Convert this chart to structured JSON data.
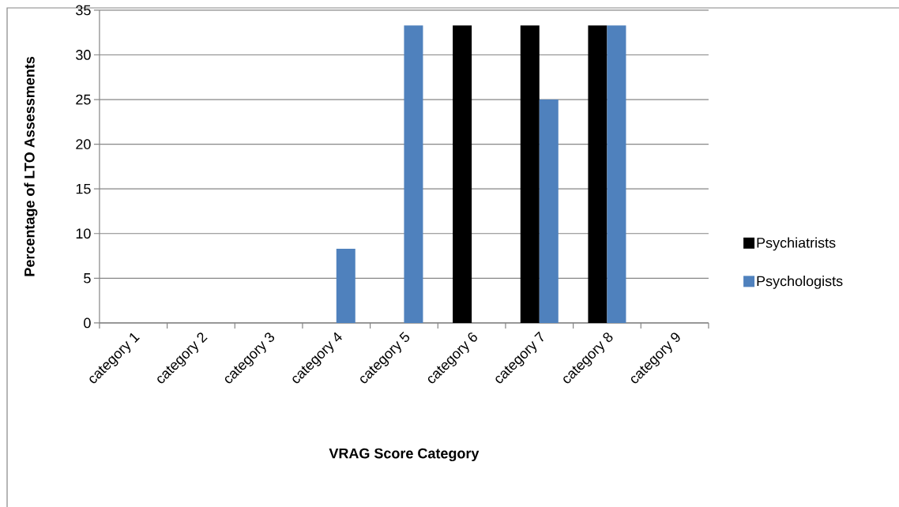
{
  "chart_data": {
    "type": "bar",
    "xlabel": "VRAG Score Category",
    "ylabel": "Percentage of LTO Assessments",
    "categories": [
      "category 1",
      "category 2",
      "category 3",
      "category 4",
      "category 5",
      "category 6",
      "category 7",
      "category 8",
      "category 9"
    ],
    "series": [
      {
        "name": "Psychiatrists",
        "color": "#000000",
        "values": [
          0,
          0,
          0,
          0,
          0,
          33.3,
          33.3,
          33.3,
          0
        ]
      },
      {
        "name": "Psychologists",
        "color": "#4f81bd",
        "values": [
          0,
          0,
          0,
          8.3,
          33.3,
          0,
          25,
          33.3,
          0
        ]
      }
    ],
    "ylim": [
      0,
      35
    ],
    "yticks": [
      0,
      5,
      10,
      15,
      20,
      25,
      30,
      35
    ],
    "grid": "y",
    "legend": "right"
  }
}
